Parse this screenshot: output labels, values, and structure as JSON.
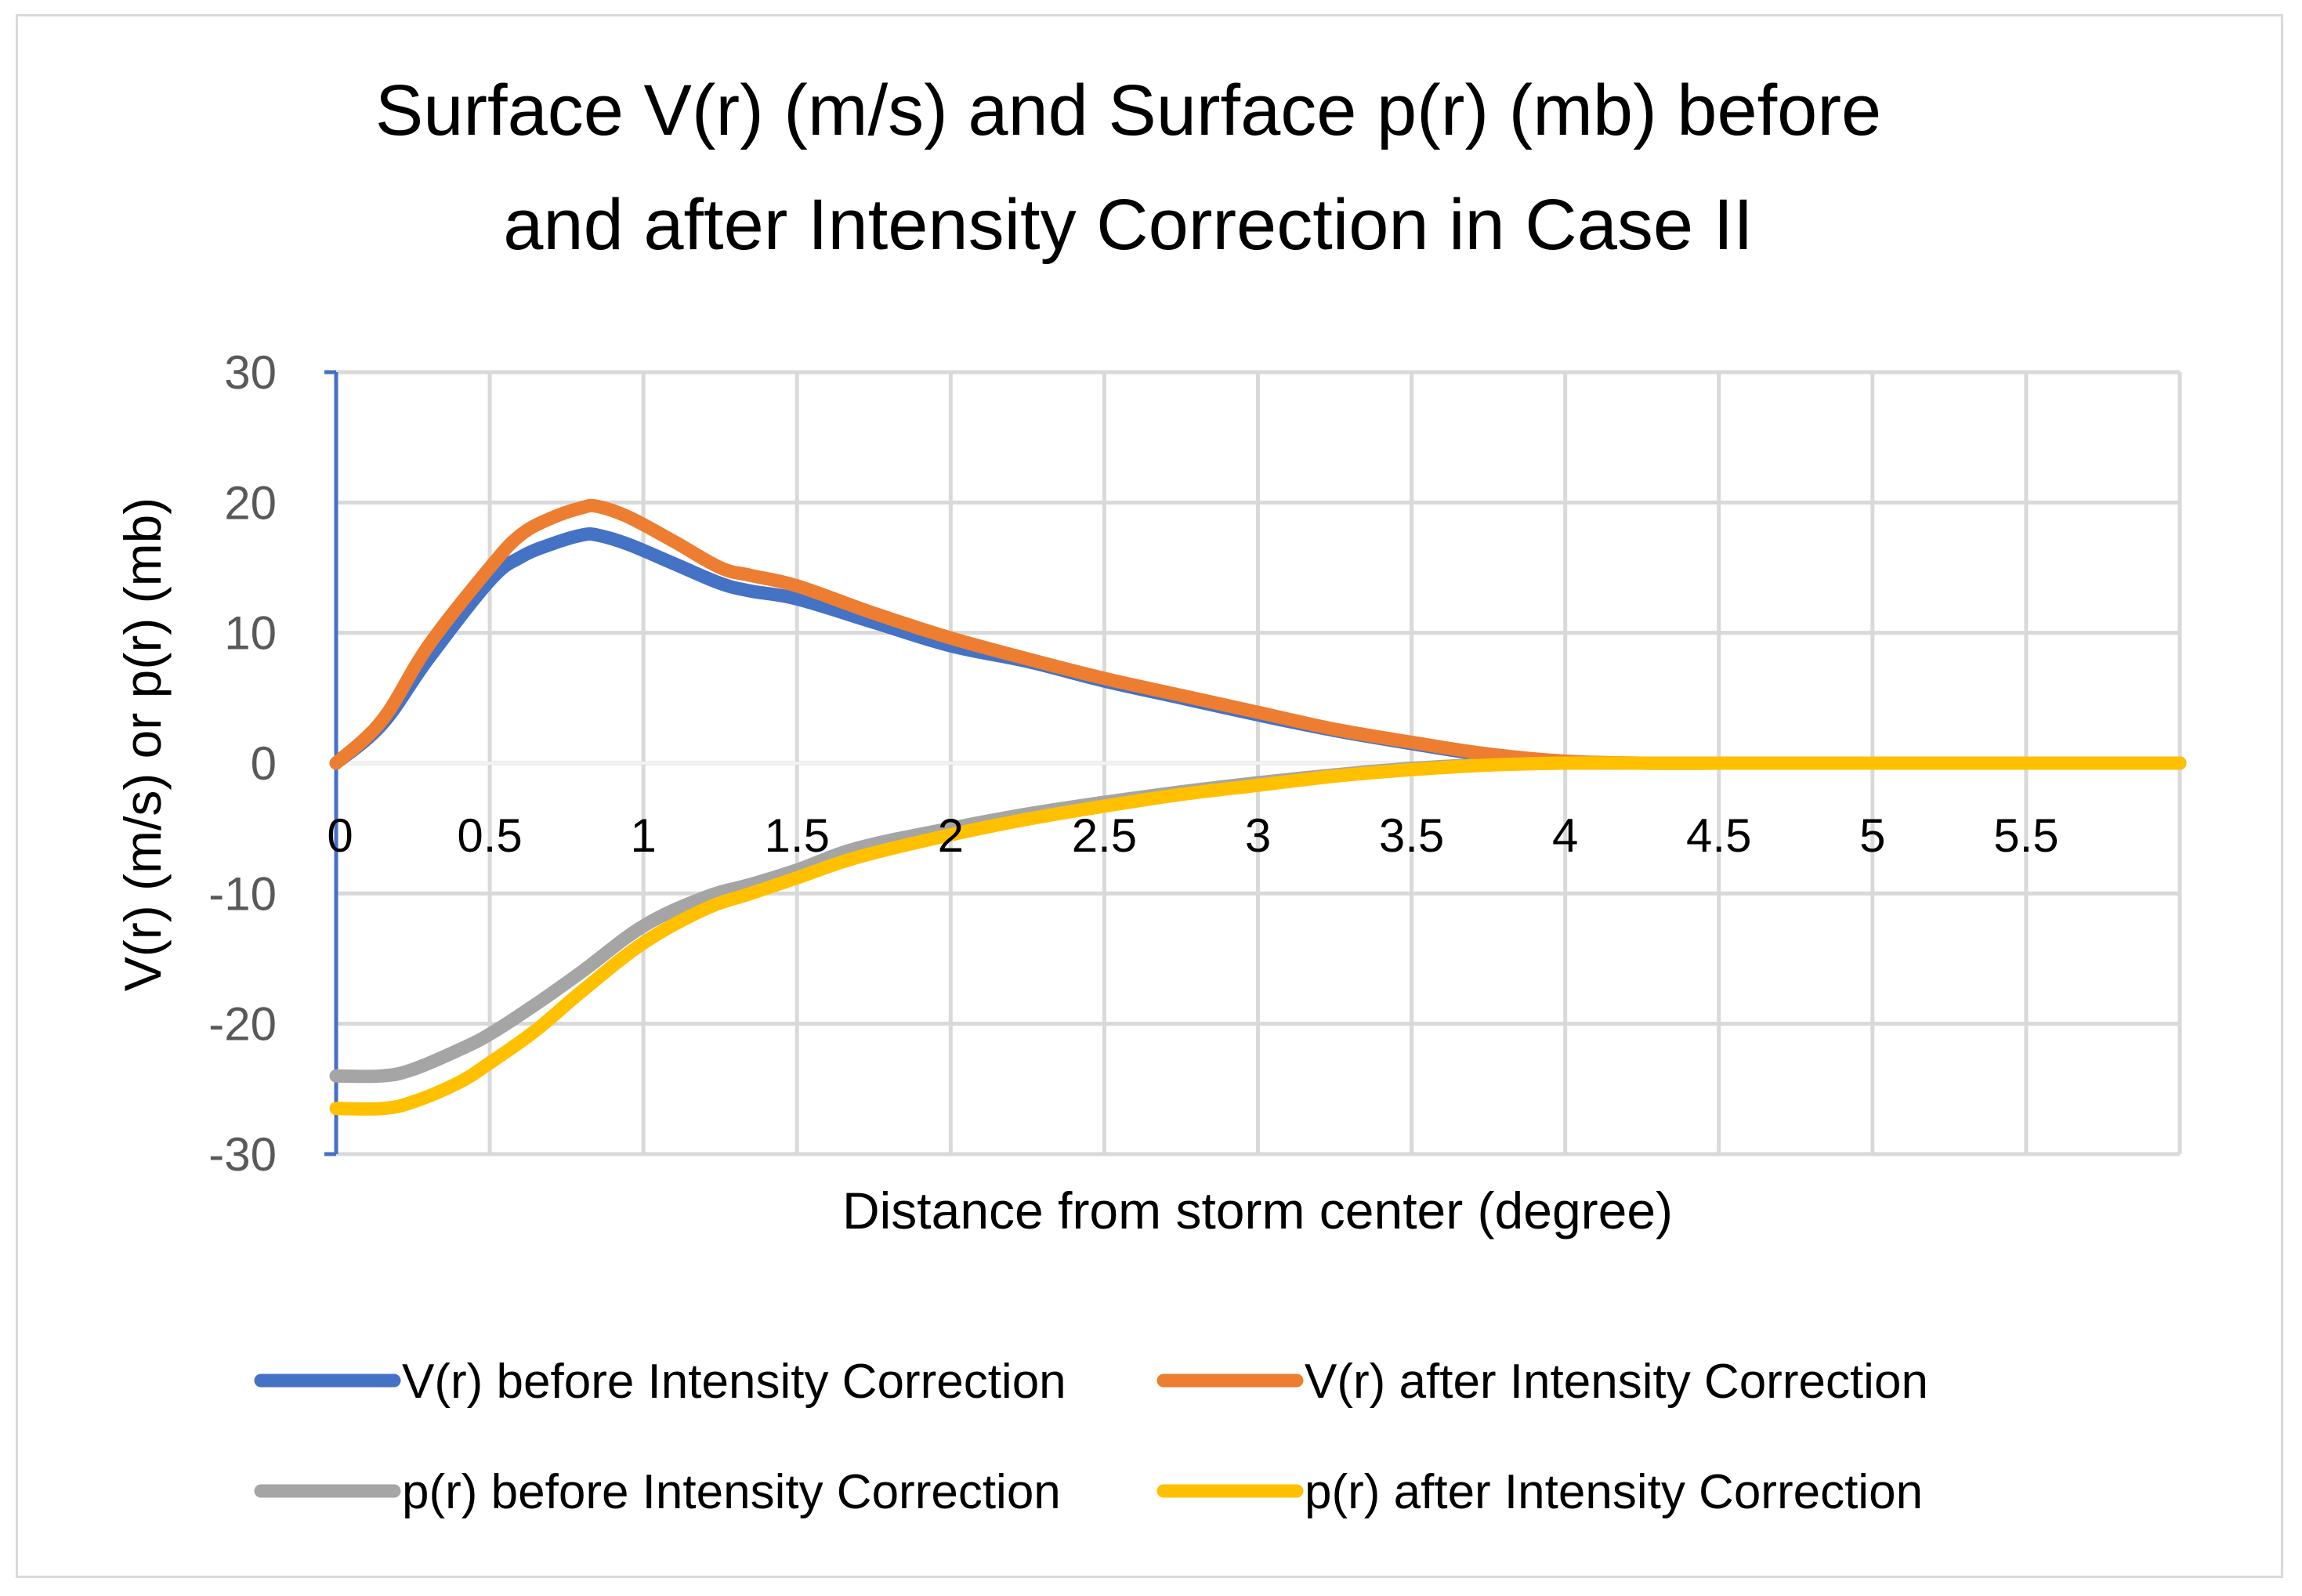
{
  "chart_data": {
    "type": "line",
    "title": "Surface V(r) (m/s) and Surface p(r) (mb) before and after Intensity Correction in Case II",
    "title_lines": [
      "Surface V(r) (m/s) and Surface p(r) (mb) before",
      "and after Intensity Correction in Case II"
    ],
    "xlabel": "Distance from storm center (degree)",
    "ylabel": "V(r) (m/s) or p(r) (mb)",
    "xlim": [
      0,
      6
    ],
    "ylim": [
      -30,
      30
    ],
    "x_ticks": [
      "0",
      "0.5",
      "1",
      "1.5",
      "2",
      "2.5",
      "3",
      "3.5",
      "4",
      "4.5",
      "5",
      "5.5"
    ],
    "y_ticks": [
      "30",
      "20",
      "10",
      "0",
      "-10",
      "-20",
      "-30"
    ],
    "grid": true,
    "legend_position": "bottom",
    "series": [
      {
        "name": "V(r) before Intensity Correction",
        "color": "#4472C4",
        "x": [
          0,
          0.15,
          0.3,
          0.5,
          0.6,
          0.7,
          0.8,
          0.85,
          0.95,
          1.1,
          1.25,
          1.35,
          1.5,
          1.75,
          2.0,
          2.25,
          2.5,
          2.75,
          3.0,
          3.25,
          3.5,
          3.75,
          4.0,
          4.25,
          4.5,
          5.0,
          5.5,
          6.0
        ],
        "y": [
          0,
          3,
          8,
          14,
          15.8,
          16.8,
          17.5,
          17.5,
          16.8,
          15.3,
          13.8,
          13.2,
          12.6,
          10.8,
          9.0,
          7.8,
          6.3,
          5.0,
          3.7,
          2.5,
          1.5,
          0.6,
          0.1,
          0,
          0,
          0,
          0,
          0
        ]
      },
      {
        "name": "V(r) after Intensity Correction",
        "color": "#ED7D31",
        "x": [
          0,
          0.15,
          0.3,
          0.5,
          0.6,
          0.7,
          0.8,
          0.85,
          0.95,
          1.1,
          1.25,
          1.35,
          1.5,
          1.75,
          2.0,
          2.25,
          2.5,
          2.75,
          3.0,
          3.25,
          3.5,
          3.75,
          4.0,
          4.25,
          4.5,
          5.0,
          5.5,
          6.0
        ],
        "y": [
          0,
          3.3,
          9,
          15,
          17.5,
          18.8,
          19.6,
          19.7,
          18.9,
          17.0,
          15.0,
          14.4,
          13.6,
          11.5,
          9.6,
          8.0,
          6.5,
          5.2,
          3.9,
          2.6,
          1.6,
          0.7,
          0.15,
          0,
          0,
          0,
          0,
          0
        ]
      },
      {
        "name": "p(r) before Intensity Correction",
        "color": "#A5A5A5",
        "x": [
          0,
          0.15,
          0.25,
          0.4,
          0.5,
          0.65,
          0.8,
          1.0,
          1.2,
          1.35,
          1.5,
          1.7,
          2.0,
          2.25,
          2.5,
          2.75,
          3.0,
          3.25,
          3.5,
          3.75,
          4.0,
          4.25,
          4.5,
          5.0,
          5.5,
          6.0
        ],
        "y": [
          -24,
          -24,
          -23.5,
          -22,
          -20.8,
          -18.5,
          -16,
          -12.5,
          -10.3,
          -9.3,
          -8.2,
          -6.5,
          -5.0,
          -3.9,
          -3.0,
          -2.2,
          -1.5,
          -0.9,
          -0.4,
          -0.1,
          0,
          0,
          0,
          0,
          0,
          0
        ]
      },
      {
        "name": "p(r) after Intensity Correction",
        "color": "#FFC000",
        "x": [
          0,
          0.15,
          0.25,
          0.4,
          0.5,
          0.65,
          0.8,
          1.0,
          1.2,
          1.35,
          1.5,
          1.7,
          2.0,
          2.25,
          2.5,
          2.75,
          3.0,
          3.25,
          3.5,
          3.75,
          4.0,
          4.25,
          4.5,
          5.0,
          5.5,
          6.0
        ],
        "y": [
          -26.5,
          -26.5,
          -26,
          -24.5,
          -23,
          -20.5,
          -17.5,
          -13.8,
          -11.2,
          -10,
          -8.8,
          -7.2,
          -5.5,
          -4.3,
          -3.3,
          -2.4,
          -1.7,
          -1.0,
          -0.5,
          -0.15,
          0,
          0,
          0,
          0,
          0,
          0
        ]
      }
    ]
  }
}
